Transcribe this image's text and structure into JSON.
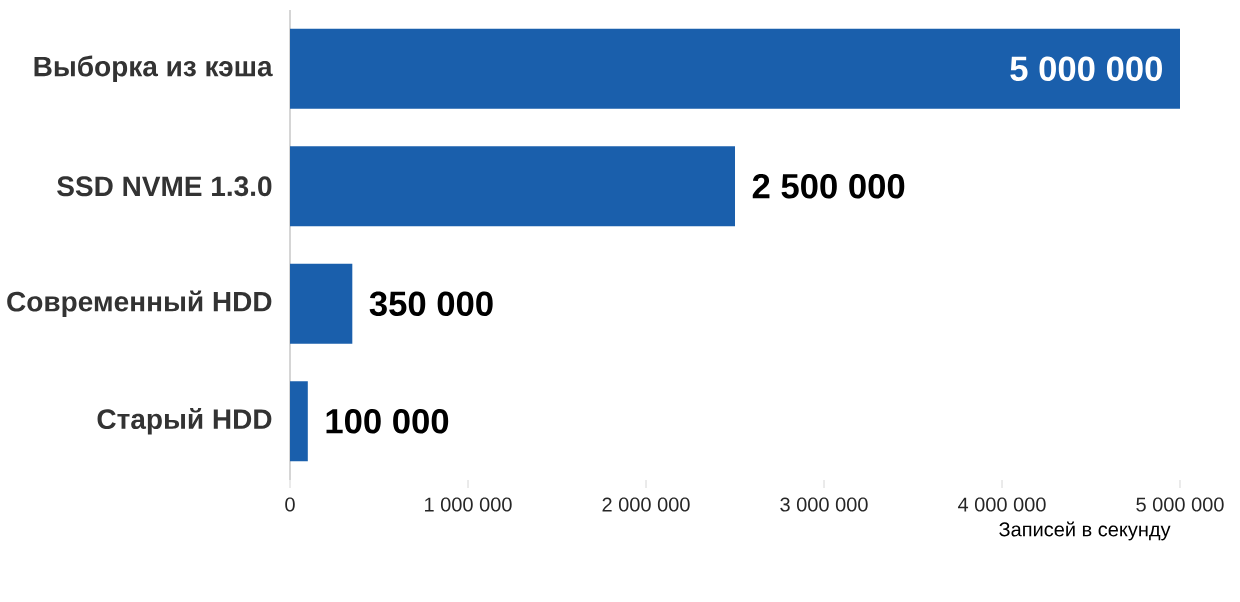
{
  "chart_data": {
    "type": "bar",
    "orientation": "horizontal",
    "xlabel": "Записей в секунду",
    "categories": [
      "Выборка из кэша",
      "SSD NVME 1.3.0",
      "Современный HDD",
      "Старый HDD"
    ],
    "values": [
      5000000,
      2500000,
      350000,
      100000
    ],
    "value_labels": [
      "5 000 000",
      "2 500 000",
      "350 000",
      "100 000"
    ],
    "color": "#1a5fac",
    "xlim": [
      0,
      5000000
    ],
    "xticks": [
      0,
      {
        "value": 1000000,
        "label": "1 000 000"
      },
      {
        "value": 2000000,
        "label": "2 000 000"
      },
      {
        "value": 3000000,
        "label": "3 000 000"
      },
      {
        "value": 4000000,
        "label": "4 000 000"
      },
      {
        "value": 5000000,
        "label": "5 000 000"
      }
    ],
    "grid": false
  }
}
